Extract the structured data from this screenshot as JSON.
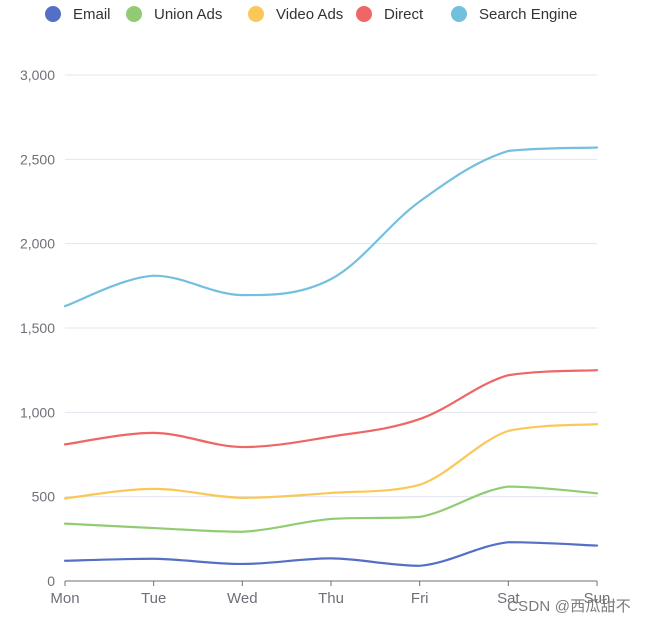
{
  "chart_data": {
    "type": "line",
    "smooth": true,
    "title": "",
    "xlabel": "",
    "ylabel": "",
    "categories": [
      "Mon",
      "Tue",
      "Wed",
      "Thu",
      "Fri",
      "Sat",
      "Sun"
    ],
    "ylim": [
      0,
      3000
    ],
    "yticks": [
      "0",
      "500",
      "1,000",
      "1,500",
      "2,000",
      "2,500",
      "3,000"
    ],
    "ytick_values": [
      0,
      500,
      1000,
      1500,
      2000,
      2500,
      3000
    ],
    "grid": true,
    "legend_position": "top",
    "series": [
      {
        "name": "Email",
        "color": "#5470c6",
        "values": [
          120,
          132,
          101,
          134,
          90,
          230,
          210
        ]
      },
      {
        "name": "Union Ads",
        "color": "#91cc75",
        "values": [
          220,
          182,
          191,
          234,
          290,
          330,
          310
        ]
      },
      {
        "name": "Video Ads",
        "color": "#fac858",
        "values": [
          150,
          232,
          201,
          154,
          190,
          330,
          410
        ]
      },
      {
        "name": "Direct",
        "color": "#ee6666",
        "values": [
          320,
          332,
          301,
          334,
          390,
          330,
          320
        ]
      },
      {
        "name": "Search Engine",
        "color": "#73c0de",
        "values": [
          820,
          932,
          901,
          934,
          1290,
          1330,
          1320
        ]
      }
    ],
    "stacked": true
  },
  "watermark": "CSDN @西瓜甜不"
}
